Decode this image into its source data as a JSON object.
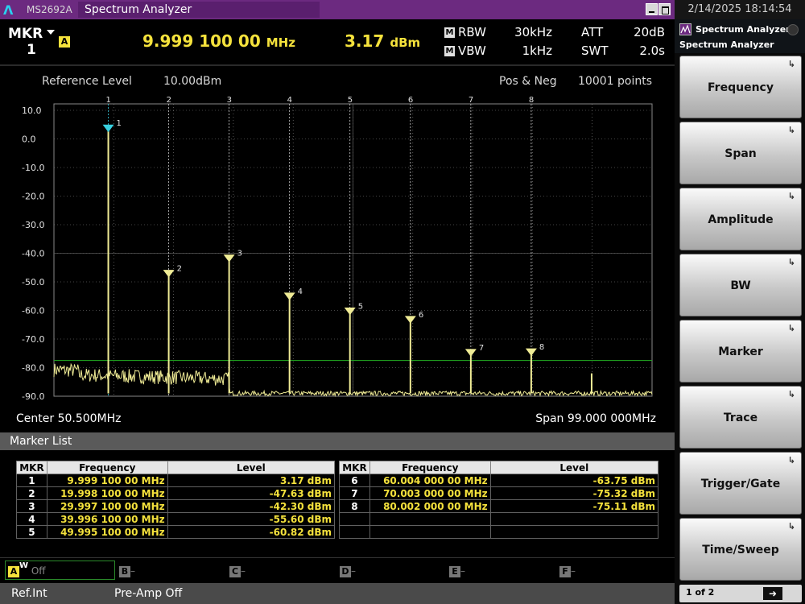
{
  "window": {
    "logo": "Λ",
    "model": "MS2692A",
    "title": "Spectrum Analyzer",
    "datetime": "2/14/2025 18:14:54"
  },
  "header": {
    "mkr_label": "MKR",
    "mkr_number": "1",
    "active_badge": "A",
    "marker_freq_value": "9.999 100 00",
    "marker_freq_unit": "MHz",
    "marker_level_value": "3.17",
    "marker_level_unit": "dBm",
    "manual_badge": "M",
    "rbw_label": "RBW",
    "rbw_value": "30kHz",
    "vbw_label": "VBW",
    "vbw_value": "1kHz",
    "att_label": "ATT",
    "att_value": "20dB",
    "swt_label": "SWT",
    "swt_value": "2.0s"
  },
  "graph": {
    "ref_level_label": "Reference Level",
    "ref_level_value": "10.00dBm",
    "detector": "Pos & Neg",
    "points": "10001 points",
    "center": "Center 50.500MHz",
    "span": "Span 99.000 000MHz"
  },
  "chart_data": {
    "type": "line",
    "xlim": [
      1.0,
      100.0
    ],
    "ylim": [
      -90,
      10
    ],
    "ytick_labels": [
      "10.0",
      "0.0",
      "-10.0",
      "-20.0",
      "-30.0",
      "-40.0",
      "-50.0",
      "-60.0",
      "-70.0",
      "-80.0",
      "-90.0"
    ],
    "yticks": [
      10,
      0,
      -10,
      -20,
      -30,
      -40,
      -50,
      -60,
      -70,
      -80,
      -90
    ],
    "display_line": -77.5,
    "colors": {
      "trace": "#f0ec96",
      "active_marker": "#38d0e0",
      "marker": "#f0ec96",
      "display_line": "#22b022",
      "grid": "#888888"
    },
    "noise_floor": -89,
    "peaks": [
      {
        "x": 9.9991,
        "y": 3.17
      },
      {
        "x": 19.9981,
        "y": -47.63
      },
      {
        "x": 29.9971,
        "y": -42.3
      },
      {
        "x": 39.9961,
        "y": -55.6
      },
      {
        "x": 49.9951,
        "y": -60.82
      },
      {
        "x": 60.004,
        "y": -63.75
      },
      {
        "x": 70.003,
        "y": -75.32
      },
      {
        "x": 80.002,
        "y": -75.11
      },
      {
        "x": 90.0,
        "y": -82.0
      }
    ],
    "markers": [
      {
        "label": "1",
        "x": 9.9991,
        "y": 3.17,
        "active": true
      },
      {
        "label": "2",
        "x": 19.9981,
        "y": -47.63
      },
      {
        "label": "3",
        "x": 29.9971,
        "y": -42.3
      },
      {
        "label": "4",
        "x": 39.9961,
        "y": -55.6
      },
      {
        "label": "5",
        "x": 49.9951,
        "y": -60.82
      },
      {
        "label": "6",
        "x": 60.004,
        "y": -63.75
      },
      {
        "label": "7",
        "x": 70.003,
        "y": -75.32
      },
      {
        "label": "8",
        "x": 80.002,
        "y": -75.11
      }
    ]
  },
  "marker_list": {
    "title": "Marker List",
    "columns": [
      "MKR",
      "Frequency",
      "Level"
    ],
    "left": [
      {
        "mkr": "1",
        "freq": "9.999 100 00 MHz",
        "level": "3.17 dBm"
      },
      {
        "mkr": "2",
        "freq": "19.998 100 00 MHz",
        "level": "-47.63 dBm"
      },
      {
        "mkr": "3",
        "freq": "29.997 100 00 MHz",
        "level": "-42.30 dBm"
      },
      {
        "mkr": "4",
        "freq": "39.996 100 00 MHz",
        "level": "-55.60 dBm"
      },
      {
        "mkr": "5",
        "freq": "49.995 100 00 MHz",
        "level": "-60.82 dBm"
      }
    ],
    "right": [
      {
        "mkr": "6",
        "freq": "60.004 000 00 MHz",
        "level": "-63.75 dBm"
      },
      {
        "mkr": "7",
        "freq": "70.003 000 00 MHz",
        "level": "-75.32 dBm"
      },
      {
        "mkr": "8",
        "freq": "80.002 000 00 MHz",
        "level": "-75.11 dBm"
      },
      {
        "mkr": "",
        "freq": "",
        "level": ""
      },
      {
        "mkr": "",
        "freq": "",
        "level": ""
      }
    ]
  },
  "traces": {
    "a_badge": "A",
    "a_w": "W",
    "a_state": "Off",
    "b": "B",
    "c": "C",
    "d": "D",
    "e": "E",
    "f": "F",
    "dash": "–"
  },
  "status": {
    "ref": "Ref.Int",
    "preamp": "Pre-Amp Off"
  },
  "panel": {
    "tab": "Spectrum Analyzer",
    "subtitle": "Spectrum Analyzer",
    "softkeys": [
      "Frequency",
      "Span",
      "Amplitude",
      "BW",
      "Marker",
      "Trace",
      "Trigger/Gate",
      "Time/Sweep"
    ],
    "submenu_arrow": "↳",
    "page": "1 of 2",
    "next_arrow": "➜"
  }
}
